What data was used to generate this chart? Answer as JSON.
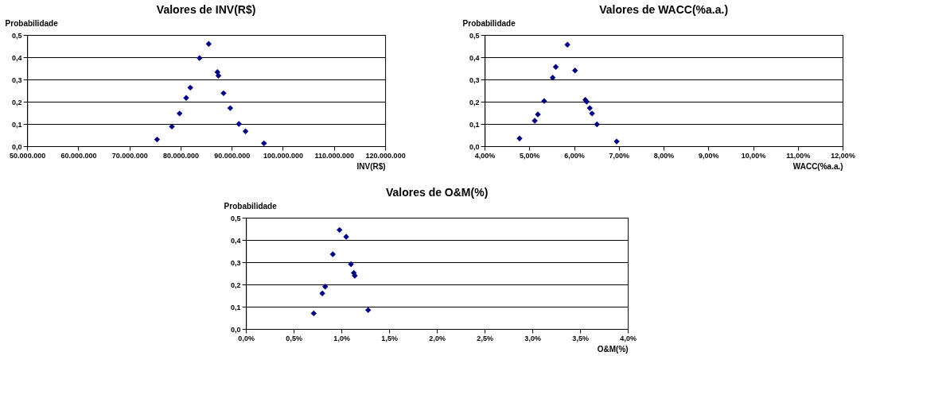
{
  "chart_data": [
    {
      "type": "scatter",
      "title": "Valores de INV(R$)",
      "xlabel": "INV(R$)",
      "ylabel": "Probabilidade",
      "color": "#000080",
      "marker": "diamond",
      "grid": "y",
      "x": [
        75400000,
        78300000,
        79800000,
        81100000,
        81900000,
        83700000,
        85500000,
        87200000,
        87400000,
        88400000,
        89700000,
        91400000,
        92700000,
        96300000
      ],
      "values": [
        0.03,
        0.088,
        0.147,
        0.217,
        0.263,
        0.396,
        0.46,
        0.333,
        0.317,
        0.238,
        0.171,
        0.1,
        0.067,
        0.013
      ],
      "xlim": [
        50000000,
        120000000
      ],
      "ylim": [
        0,
        0.5
      ],
      "xticks": [
        {
          "value": 50000000,
          "label": "50.000.000"
        },
        {
          "value": 60000000,
          "label": "60.000.000"
        },
        {
          "value": 70000000,
          "label": "70.000.000"
        },
        {
          "value": 80000000,
          "label": "80.000.000"
        },
        {
          "value": 90000000,
          "label": "90.000.000"
        },
        {
          "value": 100000000,
          "label": "100.000.000"
        },
        {
          "value": 110000000,
          "label": "110.000.000"
        },
        {
          "value": 120000000,
          "label": "120.000.000"
        }
      ],
      "yticks": [
        {
          "value": 0,
          "label": "0,0"
        },
        {
          "value": 0.1,
          "label": "0,1"
        },
        {
          "value": 0.2,
          "label": "0,2"
        },
        {
          "value": 0.3,
          "label": "0,3"
        },
        {
          "value": 0.4,
          "label": "0,4"
        },
        {
          "value": 0.5,
          "label": "0,5"
        }
      ]
    },
    {
      "type": "scatter",
      "title": "Valores de WACC(%a.a.)",
      "xlabel": "WACC(%a.a.)",
      "ylabel": "Probabilidade",
      "color": "#000080",
      "marker": "diamond",
      "grid": "y",
      "x": [
        4.78,
        5.12,
        5.19,
        5.33,
        5.5,
        5.52,
        5.59,
        5.85,
        6.02,
        6.25,
        6.28,
        6.35,
        6.4,
        6.51,
        6.95
      ],
      "values": [
        0.035,
        0.114,
        0.143,
        0.203,
        null,
        0.308,
        0.356,
        0.456,
        0.34,
        0.208,
        0.2,
        0.171,
        0.147,
        0.098,
        0.021
      ],
      "xlim": [
        4,
        12
      ],
      "ylim": [
        0,
        0.5
      ],
      "xticks": [
        {
          "value": 4,
          "label": "4,00%"
        },
        {
          "value": 5,
          "label": "5,00%"
        },
        {
          "value": 6,
          "label": "6,00%"
        },
        {
          "value": 7,
          "label": "7,00%"
        },
        {
          "value": 8,
          "label": "8,00%"
        },
        {
          "value": 9,
          "label": "9,00%"
        },
        {
          "value": 10,
          "label": "10,00%"
        },
        {
          "value": 11,
          "label": "11,00%"
        },
        {
          "value": 12,
          "label": "12,00%"
        }
      ],
      "yticks": [
        {
          "value": 0,
          "label": "0,0"
        },
        {
          "value": 0.1,
          "label": "0,1"
        },
        {
          "value": 0.2,
          "label": "0,2"
        },
        {
          "value": 0.3,
          "label": "0,3"
        },
        {
          "value": 0.4,
          "label": "0,4"
        },
        {
          "value": 0.5,
          "label": "0,5"
        }
      ]
    },
    {
      "type": "scatter",
      "title": "Valores de O&M(%)",
      "xlabel": "O&M(%)",
      "ylabel": "Probabilidade",
      "color": "#000080",
      "marker": "diamond",
      "grid": "y",
      "x": [
        0.71,
        0.8,
        0.83,
        0.91,
        0.98,
        1.05,
        1.1,
        1.13,
        1.14,
        1.28
      ],
      "values": [
        0.07,
        0.16,
        0.19,
        0.336,
        0.445,
        0.414,
        0.291,
        0.252,
        0.239,
        0.085
      ],
      "xlim": [
        0,
        4
      ],
      "ylim": [
        0,
        0.5
      ],
      "xticks": [
        {
          "value": 0,
          "label": "0,0%"
        },
        {
          "value": 0.5,
          "label": "0,5%"
        },
        {
          "value": 1,
          "label": "1,0%"
        },
        {
          "value": 1.5,
          "label": "1,5%"
        },
        {
          "value": 2,
          "label": "2,0%"
        },
        {
          "value": 2.5,
          "label": "2,5%"
        },
        {
          "value": 3,
          "label": "3,0%"
        },
        {
          "value": 3.5,
          "label": "3,5%"
        },
        {
          "value": 4,
          "label": "4,0%"
        }
      ],
      "yticks": [
        {
          "value": 0,
          "label": "0,0"
        },
        {
          "value": 0.1,
          "label": "0,1"
        },
        {
          "value": 0.2,
          "label": "0,2"
        },
        {
          "value": 0.3,
          "label": "0,3"
        },
        {
          "value": 0.4,
          "label": "0,4"
        },
        {
          "value": 0.5,
          "label": "0,5"
        }
      ]
    }
  ]
}
